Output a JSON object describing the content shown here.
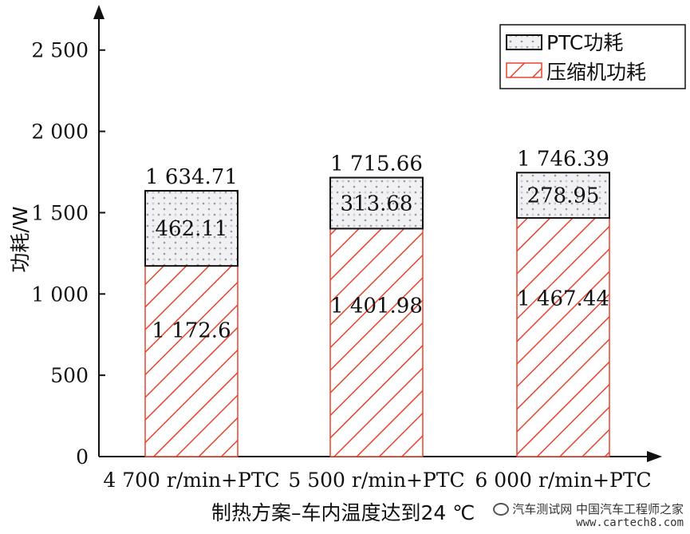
{
  "chart_data": {
    "type": "bar",
    "stacked": true,
    "categories": [
      "4 700 r/min+PTC",
      "5 500 r/min+PTC",
      "6  000 r/min+PTC"
    ],
    "series": [
      {
        "name": "压缩机功耗",
        "values": [
          1172.6,
          1401.98,
          1467.44
        ],
        "value_labels": [
          "1 172.6",
          "1 401.98",
          "1 467.44"
        ],
        "color": "#e8432e",
        "pattern": "hatch"
      },
      {
        "name": "PTC功耗",
        "values": [
          462.11,
          313.68,
          278.95
        ],
        "value_labels": [
          "462.11",
          "313.68",
          "278.95"
        ],
        "color": "#222222",
        "pattern": "dotted"
      }
    ],
    "totals": [
      1634.71,
      1715.66,
      1746.39
    ],
    "total_labels": [
      "1 634.71",
      "1 715.66",
      "1 746.39"
    ],
    "ylim": [
      0,
      2700
    ],
    "yticks": [
      0,
      500,
      1000,
      1500,
      2000,
      2500
    ],
    "ytick_labels": [
      "0",
      "500",
      "1 000",
      "1 500",
      "2 000",
      "2 500"
    ],
    "ylabel": "功耗/W",
    "xlabel": "制热方案–车内温度达到24 ℃",
    "legend": {
      "position": "top-right",
      "entries": [
        "PTC功耗",
        "压缩机功耗"
      ]
    },
    "grid": false
  },
  "watermark": {
    "text": "汽车测试网",
    "cn": "中国汽车工程师之家",
    "url": "www.cartech8.com"
  }
}
